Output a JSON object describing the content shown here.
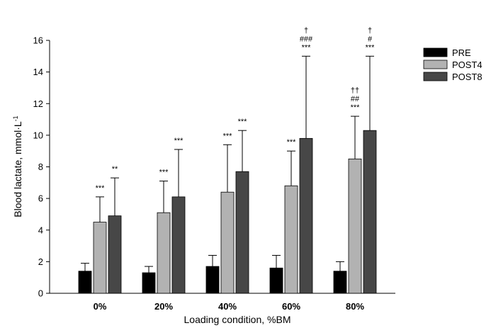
{
  "chart_data": {
    "type": "bar",
    "title": "",
    "xlabel": "Loading condition, %BM",
    "ylabel": "Blood lactate, mmol·L",
    "ylabel_superscript": "-1",
    "ylim": [
      0,
      16
    ],
    "yticks": [
      "0",
      "2",
      "4",
      "6",
      "8",
      "10",
      "12",
      "14",
      "16"
    ],
    "categories": [
      "0%",
      "20%",
      "40%",
      "60%",
      "80%"
    ],
    "legend_position": "top-right",
    "grid": false,
    "series": [
      {
        "name": "PRE",
        "color": "#000000",
        "values": [
          1.4,
          1.3,
          1.7,
          1.6,
          1.4
        ],
        "errors": [
          0.5,
          0.4,
          0.7,
          0.8,
          0.6
        ],
        "annotations": [
          [],
          [],
          [],
          [],
          []
        ]
      },
      {
        "name": "POST4",
        "color": "#b2b2b2",
        "values": [
          4.5,
          5.1,
          6.4,
          6.8,
          8.5
        ],
        "errors": [
          1.6,
          2.0,
          3.0,
          2.2,
          2.7
        ],
        "annotations": [
          [
            "***"
          ],
          [
            "***"
          ],
          [
            "***"
          ],
          [
            "***"
          ],
          [
            "***",
            "##",
            "††"
          ]
        ]
      },
      {
        "name": "POST8",
        "color": "#474747",
        "values": [
          4.9,
          6.1,
          7.7,
          9.8,
          10.3
        ],
        "errors": [
          2.4,
          3.0,
          2.6,
          5.2,
          4.7
        ],
        "annotations": [
          [
            "**"
          ],
          [
            "***"
          ],
          [
            "***"
          ],
          [
            "***",
            "###",
            "†"
          ],
          [
            "***",
            "#",
            "†"
          ]
        ]
      }
    ]
  }
}
